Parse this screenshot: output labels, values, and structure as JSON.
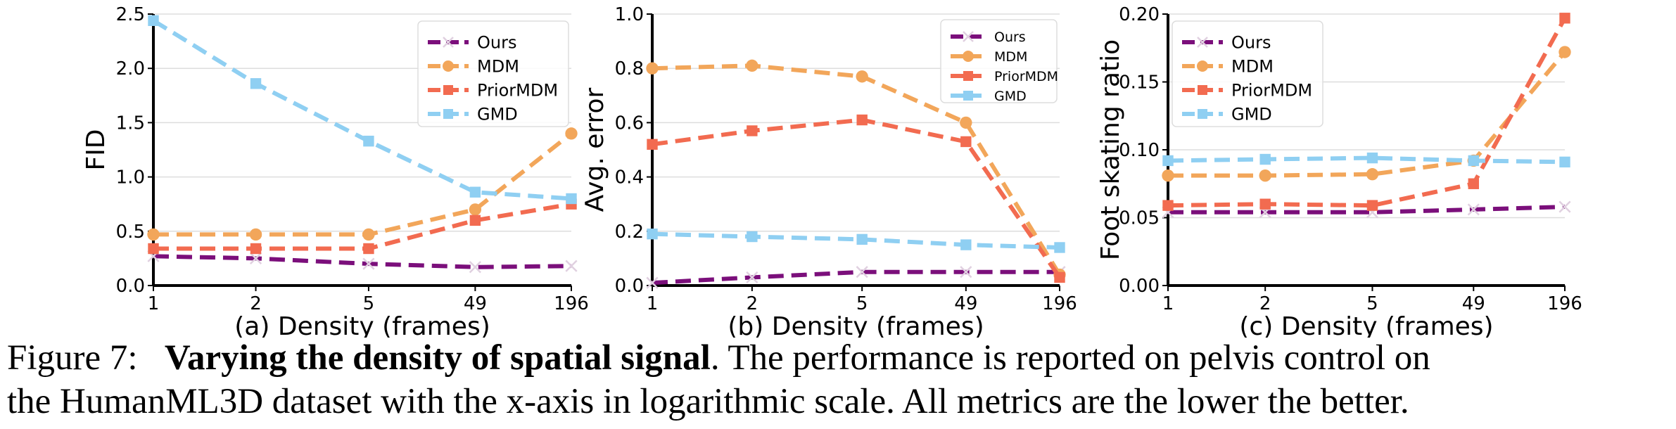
{
  "chart_data": [
    {
      "type": "line",
      "subtitle": "(a) Density (frames)",
      "ylabel": "FID",
      "xticks": [
        "1",
        "2",
        "5",
        "49",
        "196"
      ],
      "yticks": [
        "0.0",
        "0.5",
        "1.0",
        "1.5",
        "2.0",
        "2.5"
      ],
      "ylim": [
        0,
        2.5
      ],
      "x_scale": "log",
      "legend_position": "top-right",
      "legend_font": 24,
      "series": [
        {
          "name": "Ours",
          "color": "#7b0f7b",
          "marker": "x",
          "values": [
            0.27,
            0.25,
            0.2,
            0.17,
            0.18
          ]
        },
        {
          "name": "MDM",
          "color": "#f2a65a",
          "marker": "circle",
          "values": [
            0.47,
            0.47,
            0.47,
            0.7,
            1.4
          ]
        },
        {
          "name": "PriorMDM",
          "color": "#f26b50",
          "marker": "square",
          "values": [
            0.34,
            0.34,
            0.34,
            0.6,
            0.75
          ]
        },
        {
          "name": "GMD",
          "color": "#8fcff2",
          "marker": "square",
          "values": [
            2.44,
            1.86,
            1.33,
            0.86,
            0.8
          ]
        }
      ]
    },
    {
      "type": "line",
      "subtitle": "(b) Density (frames)",
      "ylabel": "Avg. error",
      "xticks": [
        "1",
        "2",
        "5",
        "49",
        "196"
      ],
      "yticks": [
        "0.0",
        "0.2",
        "0.4",
        "0.6",
        "0.8",
        "1.0"
      ],
      "ylim": [
        0,
        1.0
      ],
      "x_scale": "log",
      "legend_position": "top-right",
      "legend_font": 19,
      "series": [
        {
          "name": "Ours",
          "color": "#7b0f7b",
          "marker": "x",
          "values": [
            0.01,
            0.03,
            0.05,
            0.05,
            0.05
          ]
        },
        {
          "name": "MDM",
          "color": "#f2a65a",
          "marker": "circle",
          "values": [
            0.8,
            0.81,
            0.77,
            0.6,
            0.04
          ]
        },
        {
          "name": "PriorMDM",
          "color": "#f26b50",
          "marker": "square",
          "values": [
            0.52,
            0.57,
            0.61,
            0.53,
            0.03
          ]
        },
        {
          "name": "GMD",
          "color": "#8fcff2",
          "marker": "square",
          "values": [
            0.19,
            0.18,
            0.17,
            0.15,
            0.14
          ]
        }
      ]
    },
    {
      "type": "line",
      "subtitle": "(c) Density (frames)",
      "ylabel": "Foot skating ratio",
      "xticks": [
        "1",
        "2",
        "5",
        "49",
        "196"
      ],
      "yticks": [
        "0.00",
        "0.05",
        "0.10",
        "0.15",
        "0.20"
      ],
      "ylim": [
        0,
        0.2
      ],
      "x_scale": "log",
      "legend_position": "top-left",
      "legend_font": 24,
      "series": [
        {
          "name": "Ours",
          "color": "#7b0f7b",
          "marker": "x",
          "values": [
            0.054,
            0.054,
            0.054,
            0.056,
            0.058
          ]
        },
        {
          "name": "MDM",
          "color": "#f2a65a",
          "marker": "circle",
          "values": [
            0.081,
            0.081,
            0.082,
            0.092,
            0.172
          ]
        },
        {
          "name": "PriorMDM",
          "color": "#f26b50",
          "marker": "square",
          "values": [
            0.059,
            0.06,
            0.059,
            0.075,
            0.197
          ]
        },
        {
          "name": "GMD",
          "color": "#8fcff2",
          "marker": "square",
          "values": [
            0.092,
            0.093,
            0.094,
            0.092,
            0.091
          ]
        }
      ]
    }
  ],
  "caption": {
    "label": "Figure 7:",
    "bold": "Varying the density of spatial signal",
    "line1_rest": ". The performance is reported on pelvis control on",
    "line2": "the HumanML3D dataset with the x-axis in logarithmic scale. All metrics are the lower the better."
  }
}
